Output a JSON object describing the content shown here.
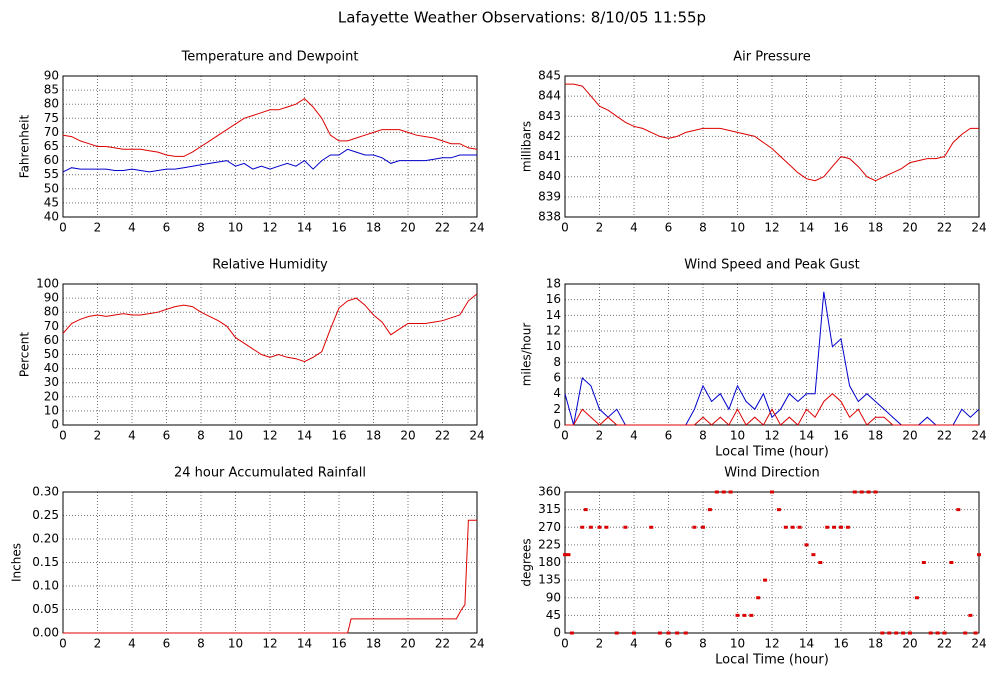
{
  "page_title": "Lafayette Weather Observations: 8/10/05 11:55p",
  "chart_data": [
    {
      "type": "line",
      "title": "Temperature and Dewpoint",
      "y_label": "Fahrenheit",
      "x": [
        0,
        0.5,
        1,
        1.5,
        2,
        2.5,
        3,
        3.5,
        4,
        4.5,
        5,
        5.5,
        6,
        6.5,
        7,
        7.5,
        8,
        8.5,
        9,
        9.5,
        10,
        10.5,
        11,
        11.5,
        12,
        12.5,
        13,
        13.5,
        14,
        14.5,
        15,
        15.5,
        16,
        16.5,
        17,
        17.5,
        18,
        18.5,
        19,
        19.5,
        20,
        20.5,
        21,
        21.5,
        22,
        22.5,
        23,
        23.5,
        24
      ],
      "series": [
        {
          "color": "#dd0000",
          "values": [
            69,
            68.5,
            67,
            66,
            65,
            65,
            64.5,
            64,
            64,
            64,
            63.5,
            63,
            62,
            61.5,
            61.5,
            63,
            65,
            67,
            69,
            71,
            73,
            75,
            76,
            77,
            78,
            78,
            79,
            80,
            82,
            79,
            75,
            69,
            67,
            67,
            68,
            69,
            70,
            71,
            71,
            71,
            70,
            69,
            68.5,
            68,
            67,
            66,
            66,
            64.5,
            64
          ]
        },
        {
          "color": "#0000cc",
          "values": [
            56,
            57.5,
            57,
            57,
            57,
            57,
            56.5,
            56.5,
            57,
            56.5,
            56,
            56.5,
            57,
            57,
            57.5,
            58,
            58.5,
            59,
            59.5,
            60,
            58,
            59,
            57,
            58,
            57,
            58,
            59,
            58,
            60,
            57,
            60,
            62,
            62,
            64,
            63,
            62,
            62,
            61,
            59,
            60,
            60,
            60,
            60,
            60.5,
            61,
            61,
            62,
            62,
            62
          ]
        }
      ],
      "xlim": [
        0,
        24
      ],
      "xticks": [
        0,
        2,
        4,
        6,
        8,
        10,
        12,
        14,
        16,
        18,
        20,
        22,
        24
      ],
      "ylim": [
        40,
        90
      ],
      "yticks": [
        40,
        45,
        50,
        55,
        60,
        65,
        70,
        75,
        80,
        85,
        90
      ],
      "grid": true
    },
    {
      "type": "line",
      "title": "Air Pressure",
      "y_label": "millibars",
      "x": [
        0,
        0.5,
        1,
        1.5,
        2,
        2.5,
        3,
        3.5,
        4,
        4.5,
        5,
        5.5,
        6,
        6.5,
        7,
        7.5,
        8,
        8.5,
        9,
        9.5,
        10,
        10.5,
        11,
        11.5,
        12,
        12.5,
        13,
        13.5,
        14,
        14.5,
        15,
        15.5,
        16,
        16.5,
        17,
        17.5,
        18,
        18.5,
        19,
        19.5,
        20,
        20.5,
        21,
        21.5,
        22,
        22.5,
        23,
        23.5,
        24
      ],
      "series": [
        {
          "color": "#dd0000",
          "values": [
            844.6,
            844.6,
            844.5,
            844,
            843.5,
            843.3,
            843,
            842.7,
            842.5,
            842.4,
            842.2,
            842,
            841.9,
            842,
            842.2,
            842.3,
            842.4,
            842.4,
            842.4,
            842.3,
            842.2,
            842.1,
            842,
            841.7,
            841.4,
            841,
            840.6,
            840.2,
            839.9,
            839.8,
            840,
            840.5,
            841,
            840.9,
            840.5,
            840,
            839.8,
            840,
            840.2,
            840.4,
            840.7,
            840.8,
            840.9,
            840.9,
            841,
            841.7,
            842.1,
            842.4,
            842.4
          ]
        }
      ],
      "xlim": [
        0,
        24
      ],
      "xticks": [
        0,
        2,
        4,
        6,
        8,
        10,
        12,
        14,
        16,
        18,
        20,
        22,
        24
      ],
      "ylim": [
        838,
        845
      ],
      "yticks": [
        838,
        839,
        840,
        841,
        842,
        843,
        844,
        845
      ],
      "grid": true
    },
    {
      "type": "line",
      "title": "Relative Humidity",
      "y_label": "Percent",
      "x": [
        0,
        0.5,
        1,
        1.5,
        2,
        2.5,
        3,
        3.5,
        4,
        4.5,
        5,
        5.5,
        6,
        6.5,
        7,
        7.5,
        8,
        8.5,
        9,
        9.5,
        10,
        10.5,
        11,
        11.5,
        12,
        12.5,
        13,
        13.5,
        14,
        14.5,
        15,
        15.5,
        16,
        16.5,
        17,
        17.5,
        18,
        18.5,
        19,
        19.5,
        20,
        20.5,
        21,
        21.5,
        22,
        22.5,
        23,
        23.5,
        24
      ],
      "series": [
        {
          "color": "#dd0000",
          "values": [
            65,
            72,
            75,
            77,
            78,
            77,
            78,
            79,
            78,
            78,
            79,
            80,
            82,
            84,
            85,
            84,
            80,
            77,
            74,
            70,
            62,
            58,
            54,
            50,
            48,
            50,
            48,
            47,
            45,
            48,
            52,
            68,
            83,
            88,
            90,
            85,
            78,
            73,
            64,
            68,
            72,
            72,
            72,
            73,
            74,
            76,
            78,
            88,
            93
          ]
        }
      ],
      "xlim": [
        0,
        24
      ],
      "xticks": [
        0,
        2,
        4,
        6,
        8,
        10,
        12,
        14,
        16,
        18,
        20,
        22,
        24
      ],
      "ylim": [
        0,
        100
      ],
      "yticks": [
        0,
        10,
        20,
        30,
        40,
        50,
        60,
        70,
        80,
        90,
        100
      ],
      "grid": true
    },
    {
      "type": "line",
      "title": "Wind Speed and Peak Gust",
      "y_label": "miles/hour",
      "x_label": "Local Time (hour)",
      "x": [
        0,
        0.5,
        1,
        1.5,
        2,
        2.5,
        3,
        3.5,
        4,
        4.5,
        5,
        5.5,
        6,
        6.5,
        7,
        7.5,
        8,
        8.5,
        9,
        9.5,
        10,
        10.5,
        11,
        11.5,
        12,
        12.5,
        13,
        13.5,
        14,
        14.5,
        15,
        15.5,
        16,
        16.5,
        17,
        17.5,
        18,
        18.5,
        19,
        19.5,
        20,
        20.5,
        21,
        21.5,
        22,
        22.5,
        23,
        23.5,
        24
      ],
      "series": [
        {
          "color": "#0000cc",
          "values": [
            4,
            0,
            6,
            5,
            2,
            1,
            2,
            0,
            0,
            0,
            0,
            0,
            0,
            0,
            0,
            2,
            5,
            3,
            4,
            2,
            5,
            3,
            2,
            4,
            1,
            2,
            4,
            3,
            4,
            4,
            17,
            10,
            11,
            5,
            3,
            4,
            3,
            2,
            1,
            0,
            0,
            0,
            1,
            0,
            0,
            0,
            2,
            1,
            2
          ]
        },
        {
          "color": "#dd0000",
          "values": [
            0,
            0,
            2,
            1,
            0,
            1,
            0,
            0,
            0,
            0,
            0,
            0,
            0,
            0,
            0,
            0,
            1,
            0,
            1,
            0,
            2,
            0,
            1,
            0,
            2,
            0,
            1,
            0,
            2,
            1,
            3,
            4,
            3,
            1,
            2,
            0,
            1,
            1,
            0,
            0,
            0,
            0,
            0,
            0,
            0,
            0,
            0,
            0,
            0
          ]
        }
      ],
      "xlim": [
        0,
        24
      ],
      "xticks": [
        0,
        2,
        4,
        6,
        8,
        10,
        12,
        14,
        16,
        18,
        20,
        22,
        24
      ],
      "ylim": [
        0,
        18
      ],
      "yticks": [
        0,
        2,
        4,
        6,
        8,
        10,
        12,
        14,
        16,
        18
      ],
      "grid": true
    },
    {
      "type": "line",
      "title": "24 hour Accumulated Rainfall",
      "y_label": "Inches",
      "x": [
        0,
        16.5,
        16.7,
        22.8,
        23.1,
        23.3,
        23.5,
        24
      ],
      "series": [
        {
          "color": "#dd0000",
          "values": [
            0,
            0,
            0.03,
            0.03,
            0.05,
            0.06,
            0.24,
            0.24
          ]
        }
      ],
      "xlim": [
        0,
        24
      ],
      "xticks": [
        0,
        2,
        4,
        6,
        8,
        10,
        12,
        14,
        16,
        18,
        20,
        22,
        24
      ],
      "ylim": [
        0,
        0.3
      ],
      "yticks": [
        {
          "value": 0,
          "label": "0.00"
        },
        {
          "value": 0.05,
          "label": "0.05"
        },
        {
          "value": 0.1,
          "label": "0.10"
        },
        {
          "value": 0.15,
          "label": "0.15"
        },
        {
          "value": 0.2,
          "label": "0.20"
        },
        {
          "value": 0.25,
          "label": "0.25"
        },
        {
          "value": 0.3,
          "label": "0.30"
        }
      ],
      "grid": true
    },
    {
      "type": "scatter",
      "title": "Wind Direction",
      "y_label": "degrees",
      "x_label": "Local Time (hour)",
      "color": "#dd0000",
      "x": [
        0,
        0.2,
        0.4,
        1,
        1.2,
        1.5,
        2,
        2.4,
        3,
        3.5,
        4,
        5,
        5.5,
        6,
        6.5,
        7,
        7.5,
        8,
        8.4,
        8.8,
        9.2,
        9.6,
        10,
        10.4,
        10.8,
        11.2,
        11.6,
        12,
        12.4,
        12.8,
        13.2,
        13.6,
        14,
        14.4,
        14.8,
        15.2,
        15.6,
        16,
        16.4,
        16.8,
        17.2,
        17.6,
        18,
        18.4,
        18.8,
        19.2,
        19.6,
        20,
        20.4,
        20.8,
        21.2,
        21.6,
        22,
        22.4,
        22.8,
        23.2,
        23.5,
        23.8,
        24
      ],
      "values": [
        200,
        200,
        0,
        270,
        315,
        270,
        270,
        270,
        0,
        270,
        0,
        270,
        0,
        0,
        0,
        0,
        270,
        270,
        315,
        360,
        360,
        360,
        45,
        45,
        45,
        90,
        135,
        360,
        315,
        270,
        270,
        270,
        225,
        200,
        180,
        270,
        270,
        270,
        270,
        360,
        360,
        360,
        360,
        0,
        0,
        0,
        0,
        0,
        90,
        180,
        0,
        0,
        0,
        180,
        315,
        0,
        45,
        0,
        200
      ],
      "xlim": [
        0,
        24
      ],
      "xticks": [
        0,
        2,
        4,
        6,
        8,
        10,
        12,
        14,
        16,
        18,
        20,
        22,
        24
      ],
      "ylim": [
        0,
        360
      ],
      "yticks": [
        0,
        45,
        90,
        135,
        180,
        225,
        270,
        315,
        360
      ],
      "grid": true
    }
  ]
}
